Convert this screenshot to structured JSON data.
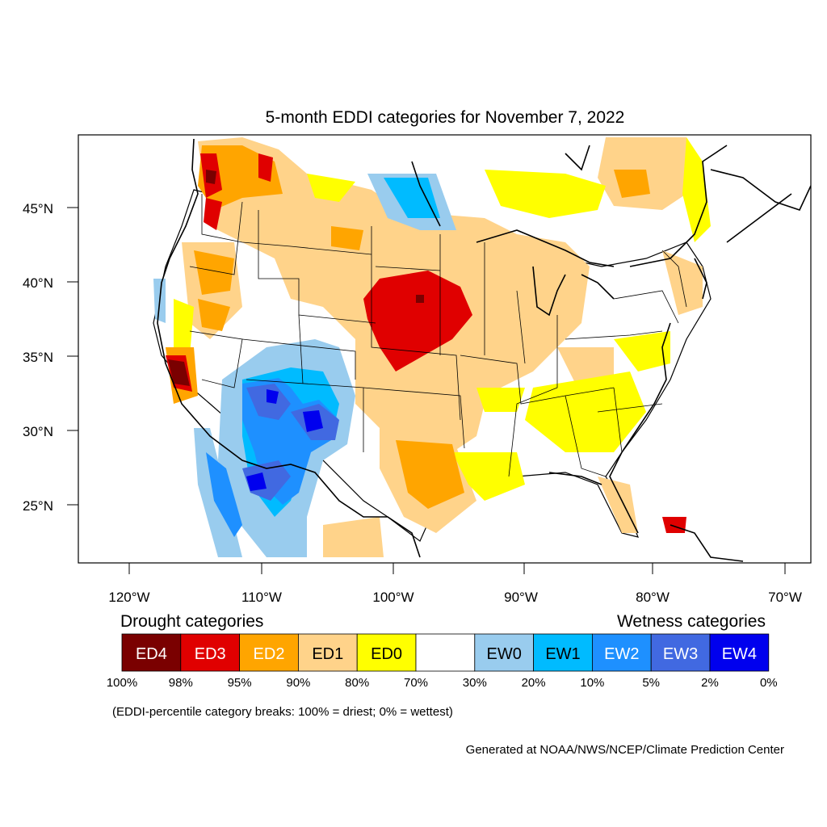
{
  "title": "5-month EDDI categories for November 7, 2022",
  "lat_labels": [
    "45°N",
    "40°N",
    "35°N",
    "30°N",
    "25°N"
  ],
  "lon_labels": [
    "120°W",
    "110°W",
    "100°W",
    "90°W",
    "80°W",
    "70°W"
  ],
  "drought_heading": "Drought categories",
  "wetness_heading": "Wetness categories",
  "legend": [
    {
      "label": "ED4",
      "color": "#7a0000",
      "text_color": "#ffffff"
    },
    {
      "label": "ED3",
      "color": "#e00000",
      "text_color": "#ffffff"
    },
    {
      "label": "ED2",
      "color": "#ffa500",
      "text_color": "#ffffff"
    },
    {
      "label": "ED1",
      "color": "#ffd38a",
      "text_color": "#000000"
    },
    {
      "label": "ED0",
      "color": "#ffff00",
      "text_color": "#000000"
    },
    {
      "label": "",
      "color": "#ffffff",
      "text_color": "#000000"
    },
    {
      "label": "EW0",
      "color": "#99ccee",
      "text_color": "#000000"
    },
    {
      "label": "EW1",
      "color": "#00bbff",
      "text_color": "#000000"
    },
    {
      "label": "EW2",
      "color": "#1e90ff",
      "text_color": "#ffffff"
    },
    {
      "label": "EW3",
      "color": "#4169e1",
      "text_color": "#ffffff"
    },
    {
      "label": "EW4",
      "color": "#0000ee",
      "text_color": "#ffffff"
    }
  ],
  "breaks": [
    "100%",
    "98%",
    "95%",
    "90%",
    "80%",
    "70%",
    "30%",
    "20%",
    "10%",
    "5%",
    "2%",
    "0%"
  ],
  "note": "(EDDI-percentile category breaks: 100% = driest; 0% = wettest)",
  "credit": "Generated at NOAA/NWS/NCEP/Climate Prediction Center"
}
